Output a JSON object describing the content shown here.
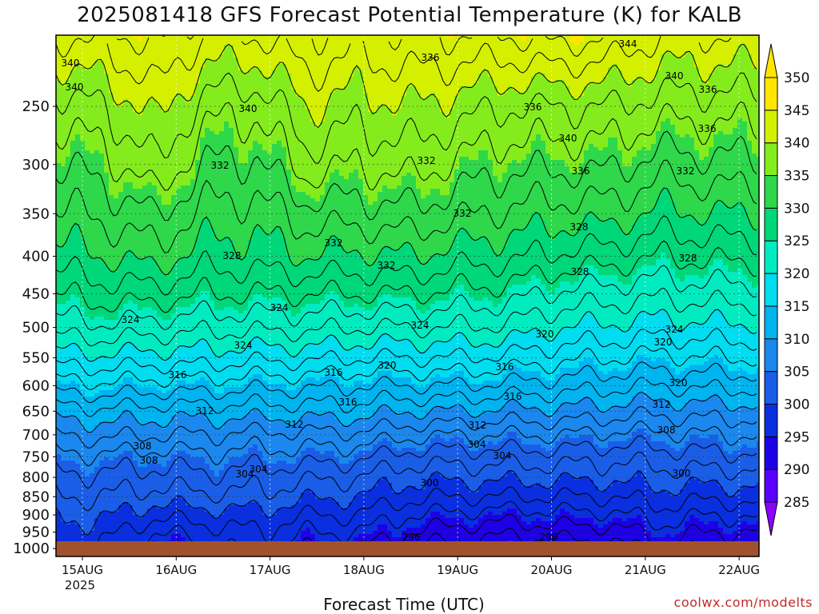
{
  "title": "2025081418 GFS Forecast Potential Temperature (K) for KALB",
  "xlabel": "Forecast Time (UTC)",
  "credit": "coolwx.com/modelts",
  "colors": {
    "ground": "#a0522d",
    "bands": [
      "#8c00ff",
      "#5a00ff",
      "#1e00e6",
      "#0a2fe0",
      "#1a5ee8",
      "#1a88ee",
      "#00b4f0",
      "#00dcf0",
      "#00ecc0",
      "#00d778",
      "#2ed84a",
      "#84ec1c",
      "#d4f000",
      "#ffe600"
    ]
  },
  "chart_data": {
    "type": "heatmap",
    "title": "2025081418 GFS Forecast Potential Temperature (K) for KALB",
    "xlabel": "Forecast Time (UTC)",
    "ylabel": "",
    "x_ticks": [
      "15AUG",
      "16AUG",
      "17AUG",
      "18AUG",
      "19AUG",
      "20AUG",
      "21AUG",
      "22AUG"
    ],
    "x_year_label": "2025",
    "y_ticks": [
      250,
      300,
      350,
      400,
      450,
      500,
      550,
      600,
      650,
      700,
      750,
      800,
      850,
      900,
      950,
      1000
    ],
    "y_range_hpa": [
      200,
      1025
    ],
    "colorbar_levels": [
      285,
      290,
      295,
      300,
      305,
      310,
      315,
      320,
      325,
      330,
      335,
      340,
      345,
      350
    ],
    "colorbar_extends": "both",
    "contour_labels": [
      "340",
      "336",
      "340",
      "340",
      "344",
      "340",
      "336",
      "336",
      "340",
      "332",
      "336",
      "332",
      "332",
      "336",
      "332",
      "328",
      "332",
      "332",
      "328",
      "328",
      "328",
      "324",
      "324",
      "324",
      "324",
      "324",
      "320",
      "320",
      "320",
      "320",
      "316",
      "316",
      "316",
      "316",
      "316",
      "312",
      "312",
      "312",
      "312",
      "308",
      "308",
      "308",
      "304",
      "304",
      "304",
      "304",
      "300",
      "300",
      "296",
      "296"
    ],
    "profile_pressures_hpa": [
      1000,
      950,
      900,
      850,
      800,
      750,
      700,
      650,
      600,
      550,
      500,
      450,
      400,
      350,
      300,
      250,
      200
    ],
    "profile_theta_K": [
      [
        298,
        299,
        300,
        302,
        303.5,
        305.5,
        308,
        311,
        315,
        319,
        323,
        326,
        329,
        331.5,
        334,
        337,
        342
      ],
      [
        298,
        299,
        300.5,
        302,
        303.5,
        305.5,
        308.5,
        311.5,
        315.5,
        319.5,
        323.5,
        327,
        330,
        332.5,
        335,
        338,
        343
      ],
      [
        294,
        296,
        298.5,
        301,
        303,
        305,
        308,
        311,
        315,
        319,
        323,
        327,
        331,
        334,
        338,
        341,
        345
      ],
      [
        295,
        297,
        299,
        301.5,
        303.5,
        305.5,
        308,
        311,
        315,
        319,
        322.5,
        326,
        329,
        331.5,
        334,
        337,
        342
      ],
      [
        297,
        298,
        299.5,
        301.5,
        303,
        305,
        307.5,
        311,
        314.5,
        318.5,
        322.5,
        326,
        329,
        331,
        333.5,
        336.5,
        342
      ],
      [
        294,
        296,
        298,
        300.5,
        302.5,
        305,
        307.5,
        311,
        314.5,
        318.5,
        322.5,
        326,
        330,
        333,
        337,
        340,
        344
      ],
      [
        294,
        296,
        298,
        300,
        302,
        304.5,
        307.5,
        311,
        314,
        318,
        322,
        326,
        329.5,
        333,
        336,
        339,
        343
      ],
      [
        292,
        294,
        296,
        298.5,
        300.5,
        303,
        306.5,
        310,
        314,
        318,
        322,
        326,
        330,
        333.5,
        337,
        340,
        344
      ],
      [
        291,
        293,
        295.5,
        298,
        300.5,
        303,
        306,
        310,
        314,
        318,
        322,
        325.5,
        329,
        332.5,
        335.5,
        339,
        344
      ],
      [
        290,
        292.5,
        295,
        298,
        300.5,
        303,
        306,
        309.5,
        313.5,
        317.5,
        321.5,
        325,
        328.5,
        331.5,
        334.5,
        338,
        344
      ],
      [
        291,
        293,
        295.5,
        298,
        300.5,
        303,
        306,
        309.5,
        313,
        316.5,
        320,
        323.5,
        327.5,
        331,
        334.5,
        338,
        345
      ],
      [
        291,
        293,
        295.5,
        298,
        300.5,
        302.5,
        305.5,
        309,
        312.5,
        316,
        319.5,
        323,
        327,
        331,
        334.5,
        338,
        344
      ],
      [
        293,
        295,
        297,
        299,
        301,
        303,
        305.5,
        308.5,
        312,
        315.5,
        319,
        322.5,
        326,
        329.5,
        333,
        337,
        342
      ],
      [
        292,
        294,
        296,
        298.5,
        301,
        303.5,
        306,
        309,
        312.5,
        316,
        319.5,
        323,
        326.5,
        330,
        333.5,
        337,
        342
      ],
      [
        292,
        294,
        296.5,
        299,
        301,
        303.5,
        306,
        309,
        312.5,
        316,
        319.5,
        323,
        326.5,
        330,
        333.5,
        337,
        342
      ]
    ]
  }
}
